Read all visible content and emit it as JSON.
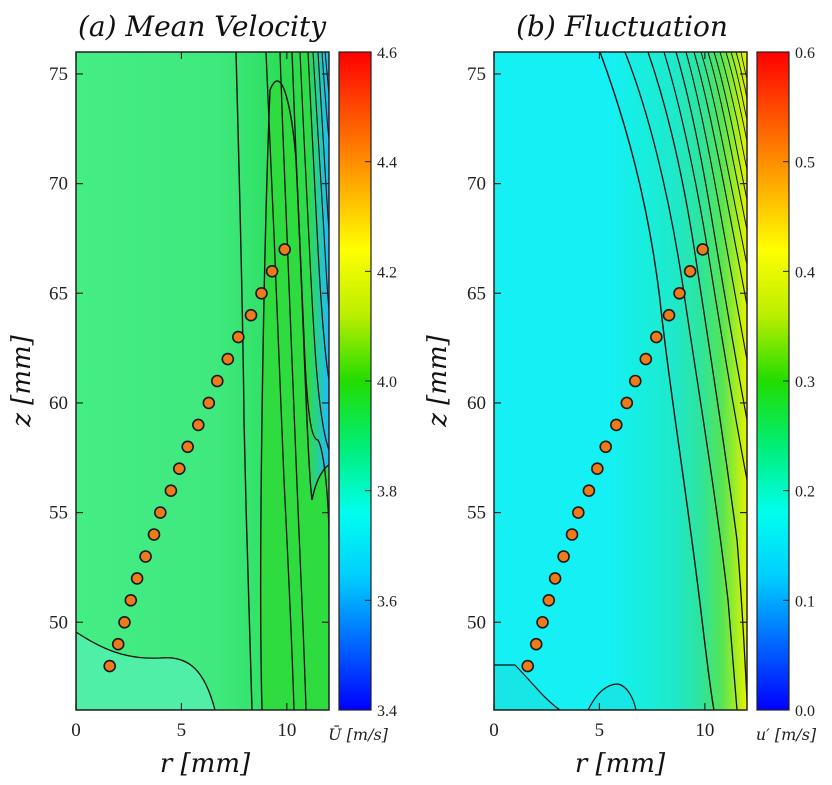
{
  "chart_data": [
    {
      "type": "contour",
      "title": "(a) Mean Velocity",
      "xlabel": "r [mm]",
      "ylabel": "z [mm]",
      "xlim": [
        0,
        12
      ],
      "ylim": [
        46,
        76
      ],
      "xticks": [
        "0",
        "5",
        "10"
      ],
      "yticks": [
        "50",
        "55",
        "60",
        "65",
        "70",
        "75"
      ],
      "colorbar": {
        "label": "Ū [m/s]",
        "range": [
          3.4,
          4.6
        ],
        "ticks": [
          "3.4",
          "3.6",
          "3.8",
          "4.0",
          "4.2",
          "4.4",
          "4.6"
        ]
      },
      "background_value": 3.93,
      "markers": {
        "r": [
          1.6,
          2.0,
          2.3,
          2.6,
          2.9,
          3.3,
          3.7,
          4.0,
          4.5,
          4.9,
          5.3,
          5.8,
          6.3,
          6.7,
          7.2,
          7.7,
          8.3,
          8.8,
          9.3,
          9.9
        ],
        "z": [
          48,
          49,
          50,
          51,
          52,
          53,
          54,
          55,
          56,
          57,
          58,
          59,
          60,
          61,
          62,
          63,
          64,
          65,
          66,
          67
        ]
      }
    },
    {
      "type": "contour",
      "title": "(b) Fluctuation",
      "xlabel": "r [mm]",
      "ylabel": "z [mm]",
      "xlim": [
        0,
        12
      ],
      "ylim": [
        46,
        76
      ],
      "xticks": [
        "0",
        "5",
        "10"
      ],
      "yticks": [
        "50",
        "55",
        "60",
        "65",
        "70",
        "75"
      ],
      "colorbar": {
        "label": "u′ [m/s]",
        "range": [
          0.0,
          0.6
        ],
        "ticks": [
          "0.0",
          "0.1",
          "0.2",
          "0.3",
          "0.4",
          "0.5",
          "0.6"
        ]
      },
      "background_value": 0.2,
      "markers": {
        "r": [
          1.6,
          2.0,
          2.3,
          2.6,
          2.9,
          3.3,
          3.7,
          4.0,
          4.5,
          4.9,
          5.3,
          5.8,
          6.3,
          6.7,
          7.2,
          7.7,
          8.3,
          8.8,
          9.3,
          9.9
        ],
        "z": [
          48,
          49,
          50,
          51,
          52,
          53,
          54,
          55,
          56,
          57,
          58,
          59,
          60,
          61,
          62,
          63,
          64,
          65,
          66,
          67
        ]
      }
    }
  ],
  "colors": {
    "marker_fill": "#ee7a1c",
    "marker_stroke": "#1a1a1a",
    "contour_line": "#111111",
    "colormap": [
      "#0000ff",
      "#0066ff",
      "#00ccff",
      "#00ffee",
      "#00ee77",
      "#22dd00",
      "#bbee00",
      "#ffff00",
      "#ffaa00",
      "#ff5500",
      "#ff0000"
    ]
  }
}
